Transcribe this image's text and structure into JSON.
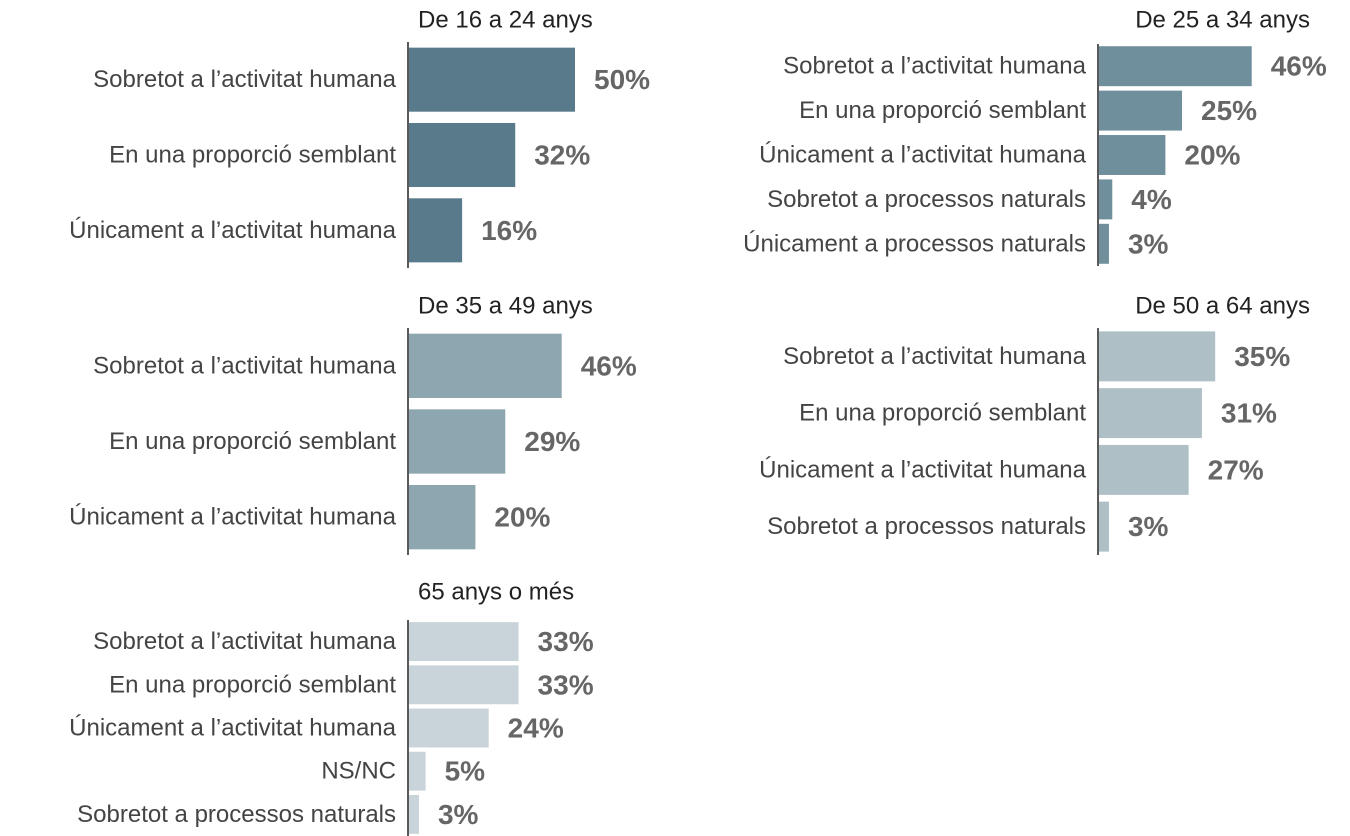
{
  "chart_data": [
    {
      "type": "bar",
      "title": "De 16 a 24 anys",
      "color": "#587a8a",
      "categories": [
        "Sobretot a l’activitat humana",
        "En una proporció semblant",
        "Únicament a l’activitat humana"
      ],
      "values": [
        50,
        32,
        16
      ],
      "value_labels": [
        "50%",
        "32%",
        "16%"
      ]
    },
    {
      "type": "bar",
      "title": "De 25 a 34 anys",
      "color": "#6f8f9c",
      "categories": [
        "Sobretot a l’activitat humana",
        "En una proporció semblant",
        "Únicament a l’activitat humana",
        "Sobretot a processos naturals",
        "Únicament a processos naturals"
      ],
      "values": [
        46,
        25,
        20,
        4,
        3
      ],
      "value_labels": [
        "46%",
        "25%",
        "20%",
        "4%",
        "3%"
      ]
    },
    {
      "type": "bar",
      "title": "De 35 a 49 anys",
      "color": "#8ea6b0",
      "categories": [
        "Sobretot a l’activitat humana",
        "En una proporció semblant",
        "Únicament a l’activitat humana"
      ],
      "values": [
        46,
        29,
        20
      ],
      "value_labels": [
        "46%",
        "29%",
        "20%"
      ]
    },
    {
      "type": "bar",
      "title": "De 50 a 64 anys",
      "color": "#aebfc6",
      "categories": [
        "Sobretot a l’activitat humana",
        "En una proporció semblant",
        "Únicament a l’activitat humana",
        "Sobretot a processos naturals"
      ],
      "values": [
        35,
        31,
        27,
        3
      ],
      "value_labels": [
        "35%",
        "31%",
        "27%",
        "3%"
      ]
    },
    {
      "type": "bar",
      "title": "65 anys o més",
      "color": "#c8d4d9",
      "categories": [
        "Sobretot a l’activitat humana",
        "En una proporció semblant",
        "Únicament a l’activitat humana",
        "NS/NC",
        "Sobretot a processos naturals"
      ],
      "values": [
        33,
        33,
        24,
        5,
        3
      ],
      "value_labels": [
        "33%",
        "33%",
        "24%",
        "5%",
        "3%"
      ]
    }
  ]
}
